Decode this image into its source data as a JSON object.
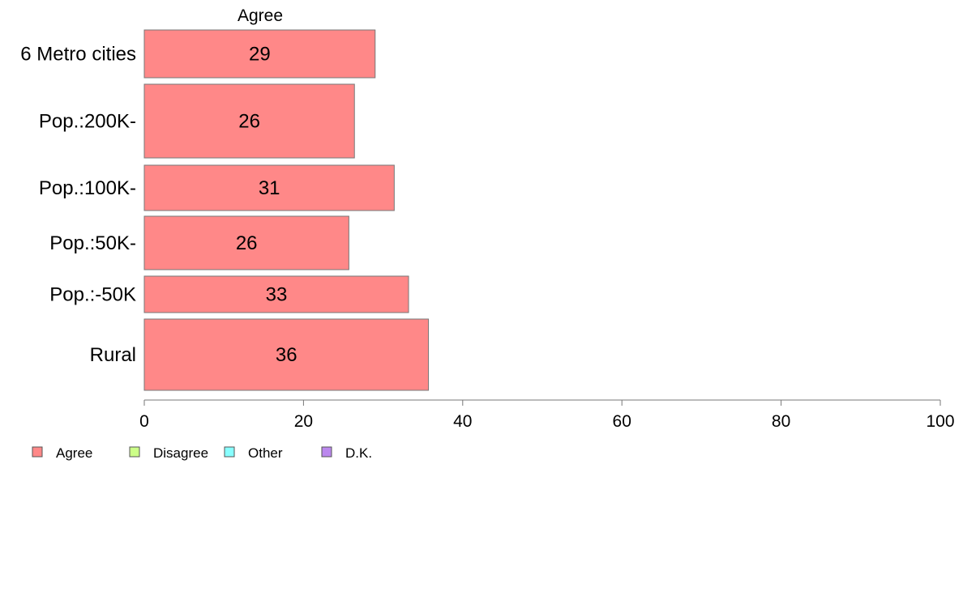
{
  "chart_data": {
    "type": "bar",
    "orientation": "horizontal",
    "categories": [
      "6 Metro cities",
      "Pop.:200K-",
      "Pop.:100K-",
      "Pop.:50K-",
      "Pop.:-50K",
      "Rural"
    ],
    "series": [
      {
        "name": "Agree",
        "values": [
          29,
          26.4,
          31.4,
          25.7,
          33.2,
          35.7
        ],
        "labels": [
          "29",
          "26",
          "31",
          "26",
          "33",
          "36"
        ]
      }
    ],
    "panel_title": "Agree",
    "xlim": [
      0,
      100
    ],
    "x_ticks": [
      0,
      20,
      40,
      60,
      80,
      100
    ],
    "grid": false,
    "legend": {
      "placement": "bottom-left",
      "entries": [
        {
          "label": "Agree",
          "color": "#ff8888"
        },
        {
          "label": "Disagree",
          "color": "#ccff88"
        },
        {
          "label": "Other",
          "color": "#88ffff"
        },
        {
          "label": "D.K.",
          "color": "#bb88ee"
        }
      ]
    },
    "bar_color": "#ff8888",
    "bar_border_color": "#777777"
  }
}
